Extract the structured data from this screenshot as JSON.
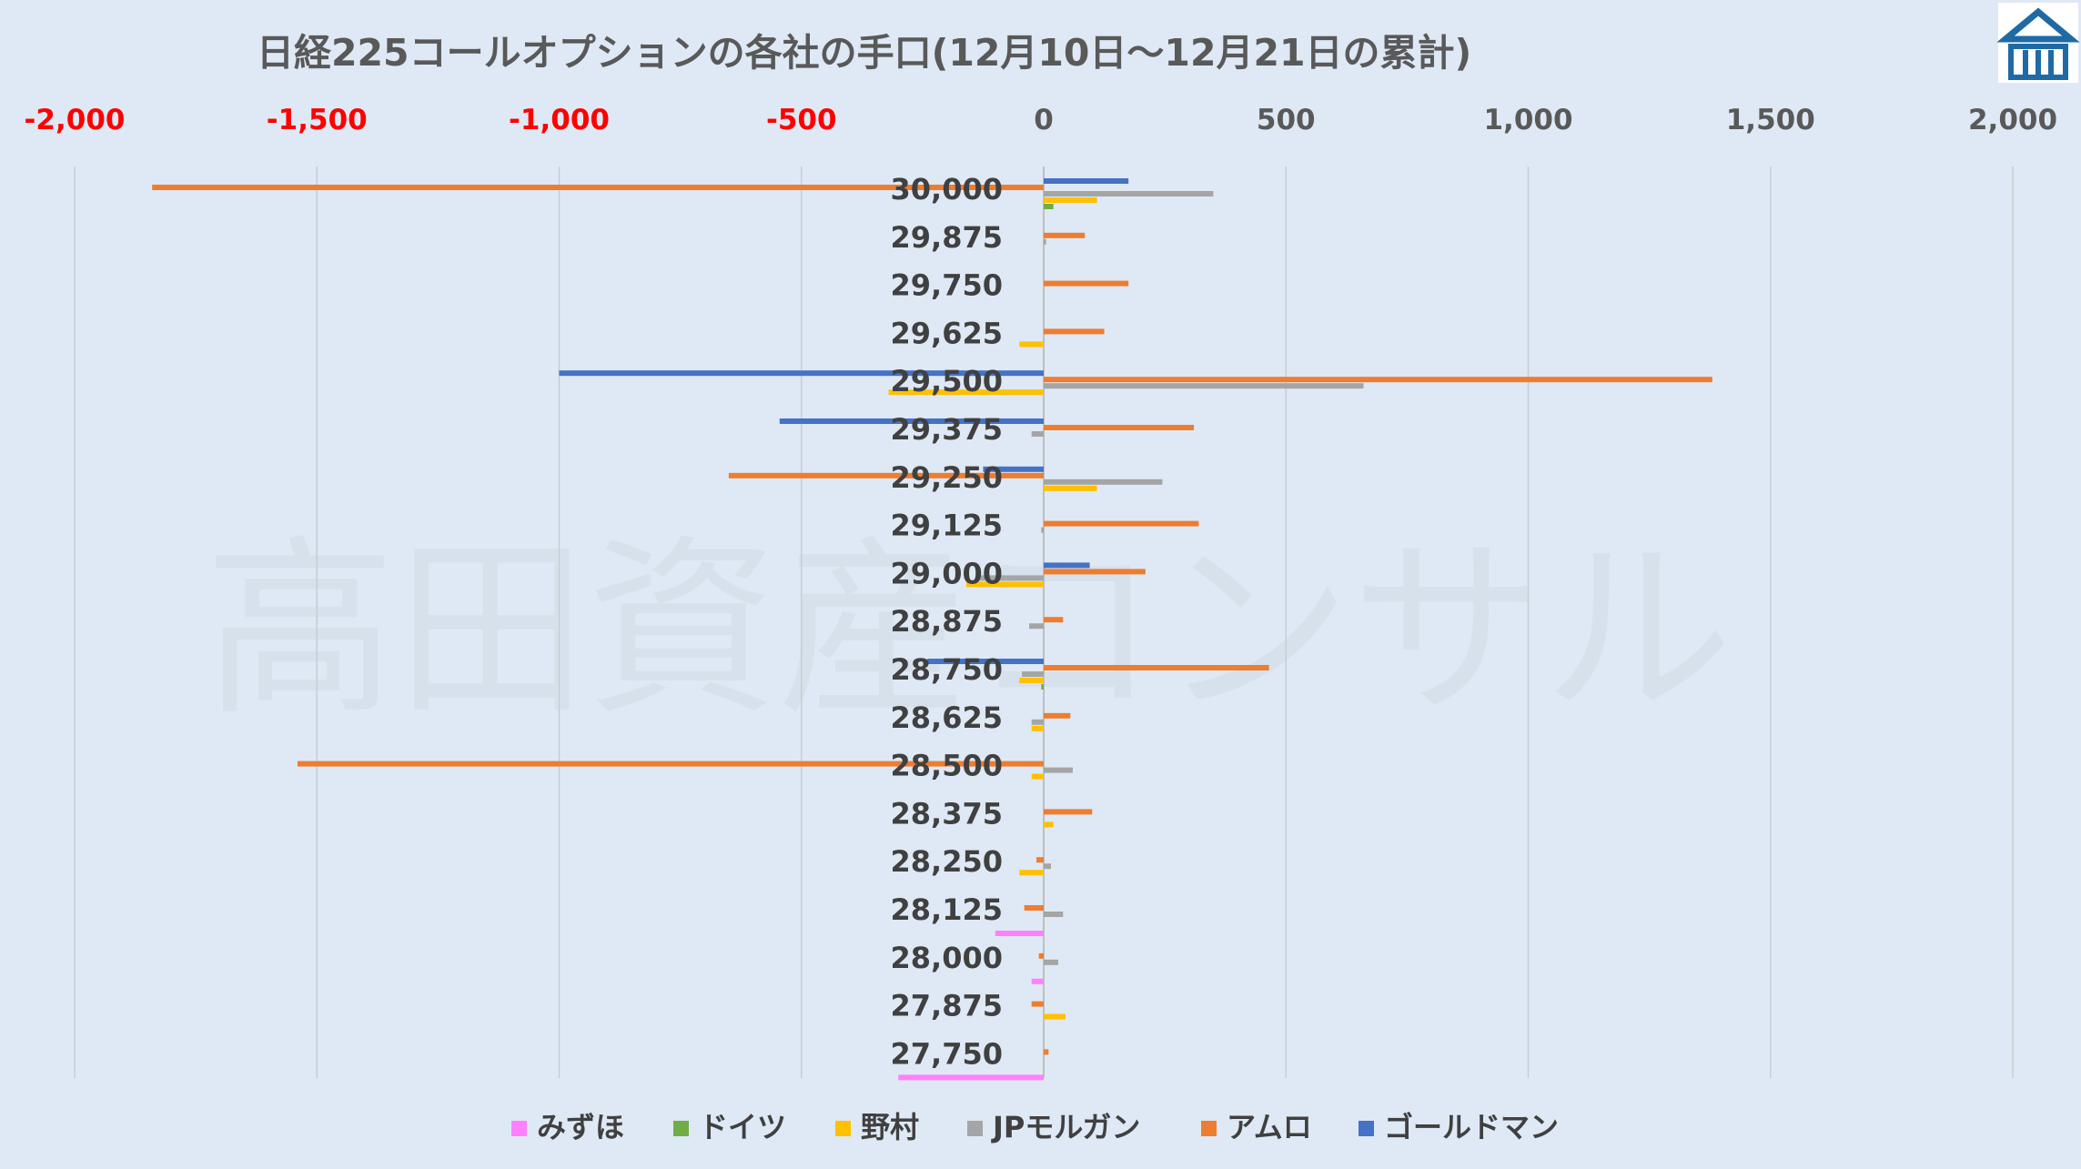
{
  "chart_data": {
    "type": "bar",
    "orientation": "horizontal",
    "title": "日経225コールオプションの各社の手口(12月10日～12月21日の累計)",
    "xlim": [
      -2000,
      2000
    ],
    "x_ticks": [
      -2000,
      -1500,
      -1000,
      -500,
      0,
      500,
      1000,
      1500,
      2000
    ],
    "x_tick_labels": [
      "-2,000",
      "-1,500",
      "-1,000",
      "-500",
      "0",
      "500",
      "1,000",
      "1,500",
      "2,000"
    ],
    "x_tick_axis_position": "top",
    "negative_tick_color": "#ff0000",
    "positive_tick_color": "#595959",
    "grid": true,
    "legend_position": "bottom",
    "watermark": "高田資産コンサル",
    "categories": [
      "30,000",
      "29,875",
      "29,750",
      "29,625",
      "29,500",
      "29,375",
      "29,250",
      "29,125",
      "29,000",
      "28,875",
      "28,750",
      "28,625",
      "28,500",
      "28,375",
      "28,250",
      "28,125",
      "28,000",
      "27,875",
      "27,750"
    ],
    "series": [
      {
        "name": "みずほ",
        "color": "#ff80ff",
        "values": [
          0,
          0,
          0,
          0,
          0,
          0,
          0,
          0,
          0,
          0,
          0,
          0,
          0,
          0,
          0,
          -100,
          -25,
          0,
          -300
        ]
      },
      {
        "name": "ドイツ",
        "color": "#70ad47",
        "values": [
          20,
          0,
          0,
          0,
          0,
          0,
          0,
          0,
          0,
          0,
          -5,
          0,
          0,
          0,
          0,
          0,
          0,
          0,
          0
        ]
      },
      {
        "name": "野村",
        "color": "#ffc000",
        "values": [
          110,
          0,
          0,
          -50,
          -320,
          0,
          110,
          0,
          -160,
          0,
          -50,
          -25,
          -25,
          20,
          -50,
          0,
          0,
          45,
          0
        ]
      },
      {
        "name": "JPモルガン",
        "color": "#a5a5a5",
        "values": [
          350,
          5,
          0,
          0,
          660,
          -25,
          245,
          -5,
          -140,
          -30,
          -45,
          -25,
          60,
          0,
          15,
          40,
          30,
          0,
          0
        ]
      },
      {
        "name": "アムロ",
        "color": "#ed7d31",
        "values": [
          -1840,
          85,
          175,
          125,
          1380,
          310,
          -650,
          320,
          210,
          40,
          465,
          55,
          -1540,
          100,
          -15,
          -40,
          -10,
          -25,
          10
        ]
      },
      {
        "name": "ゴールドマン",
        "color": "#4472c4",
        "values": [
          175,
          0,
          0,
          0,
          -1000,
          -545,
          -125,
          0,
          95,
          0,
          -240,
          0,
          0,
          0,
          0,
          0,
          0,
          0,
          0
        ]
      }
    ]
  },
  "logo": {
    "name": "company-logo",
    "color": "#1f6aa5"
  }
}
